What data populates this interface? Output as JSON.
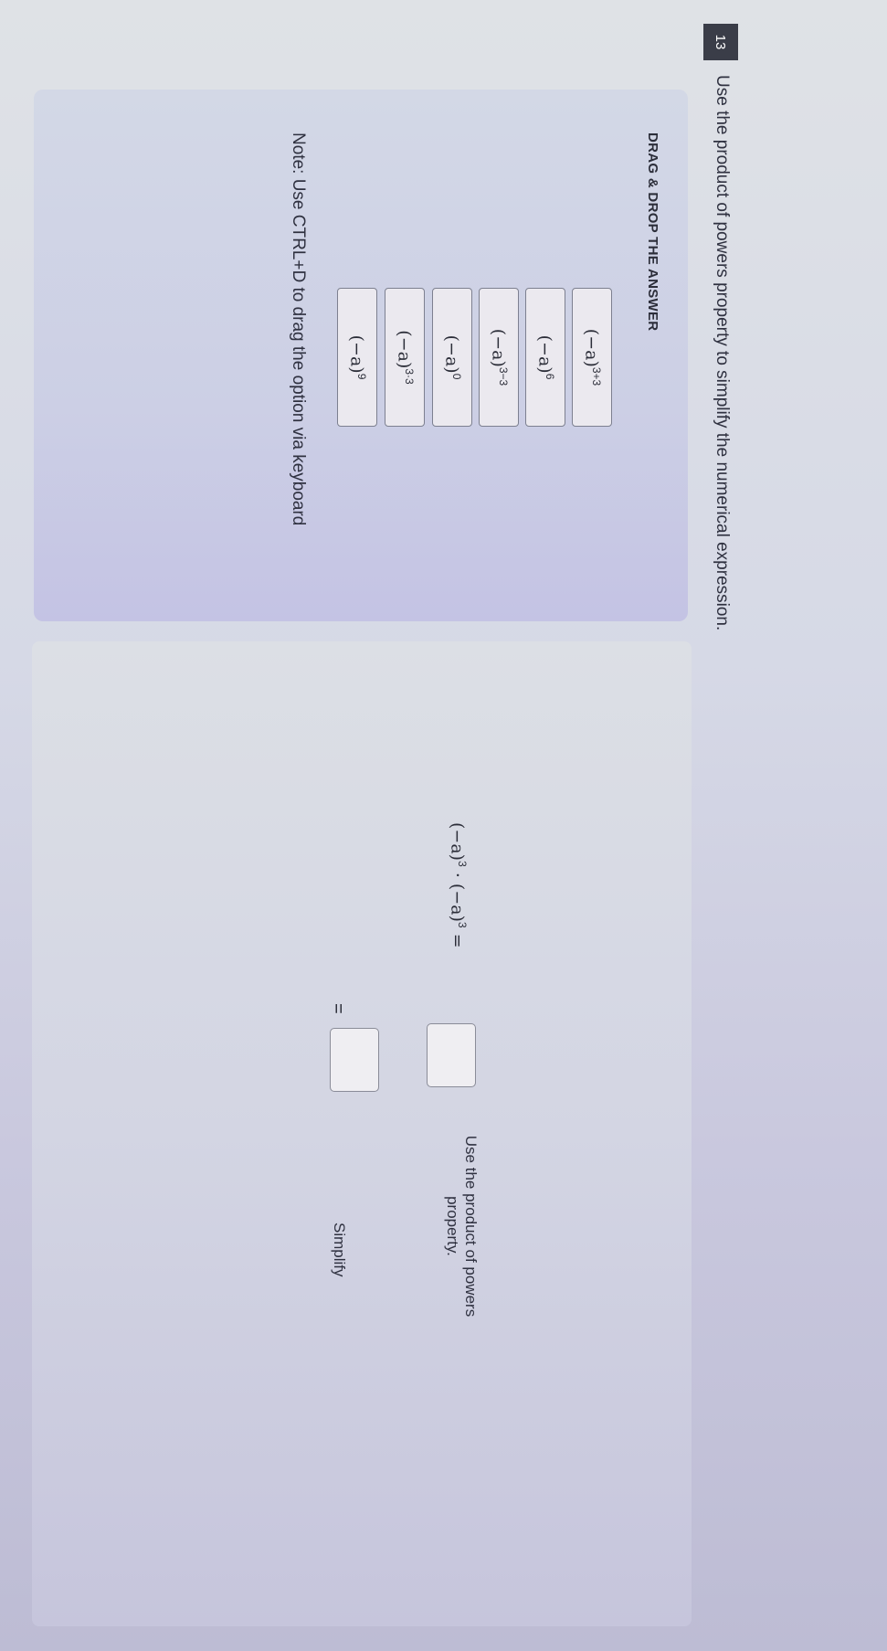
{
  "question": {
    "number": "13",
    "text": "Use the product of powers property to simplify the numerical expression."
  },
  "drag_panel": {
    "title": "DRAG & DROP THE ANSWER",
    "options": [
      {
        "base": "(−a)",
        "exp": "3+3"
      },
      {
        "base": "(−a)",
        "exp": "6"
      },
      {
        "base": "(−a)",
        "exp": "3−3"
      },
      {
        "base": "(−a)",
        "exp": "0"
      },
      {
        "base": "(−a)",
        "exp": "3·3"
      },
      {
        "base": "(−a)",
        "exp": "9"
      }
    ],
    "note": "Note: Use CTRL+D to drag the option via keyboard"
  },
  "work": {
    "expression": {
      "left_base": "(−a)",
      "left_exp": "3",
      "dot": "·",
      "right_base": "(−a)",
      "right_exp": "3",
      "equals": "="
    },
    "step1_caption": "Use the product of powers property.",
    "step2_equals": "=",
    "step2_caption": "Simplify"
  }
}
